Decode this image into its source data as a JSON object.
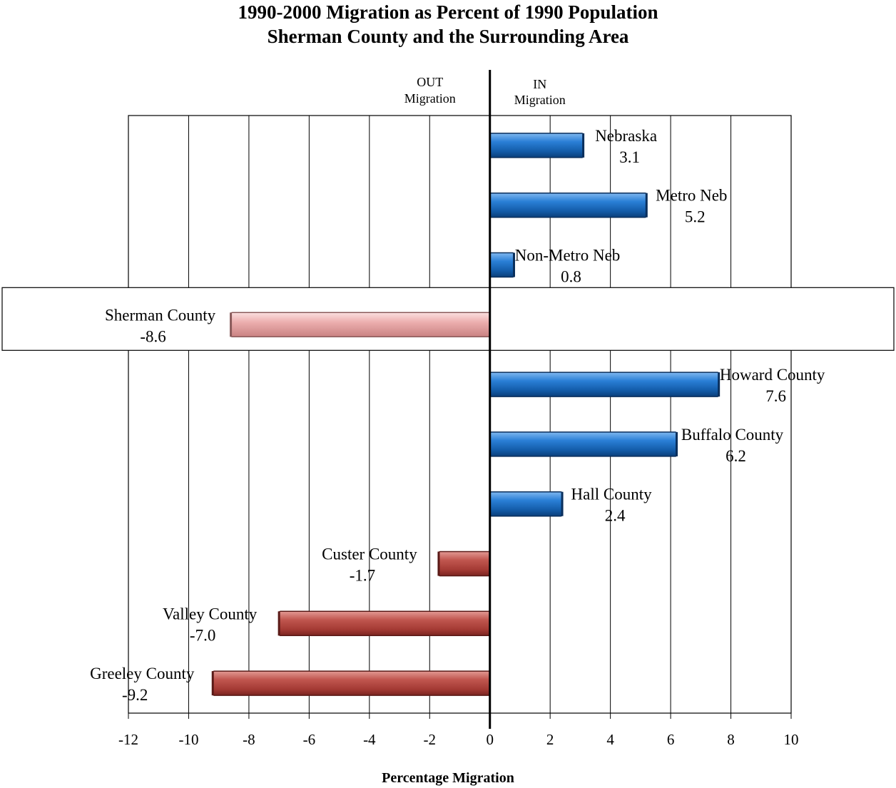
{
  "title_line1": "1990-2000 Migration  as Percent of 1990 Population",
  "title_line2": "Sherman County and the Surrounding Area",
  "out_label": [
    "OUT",
    "Migration"
  ],
  "in_label": [
    "IN",
    "Migration"
  ],
  "chart_data": {
    "type": "bar",
    "orientation": "horizontal",
    "title": "1990-2000 Migration  as Percent of 1990 Population / Sherman County and the Surrounding Area",
    "xlabel": "Percentage Migration",
    "ylabel": "",
    "xlim": [
      -12,
      10
    ],
    "xticks": [
      -12,
      -10,
      -8,
      -6,
      -4,
      -2,
      0,
      2,
      4,
      6,
      8,
      10
    ],
    "grid": true,
    "categories": [
      "Nebraska",
      "Metro Neb",
      "Non-Metro Neb",
      "Sherman County",
      "Howard County",
      "Buffalo County",
      "Hall County",
      "Custer County",
      "Valley County",
      "Greeley County"
    ],
    "values": [
      3.1,
      5.2,
      0.8,
      -8.6,
      7.6,
      6.2,
      2.4,
      -1.7,
      -7.0,
      -9.2
    ],
    "value_labels": [
      "3.1",
      "5.2",
      "0.8",
      "-8.6",
      "7.6",
      "6.2",
      "2.4",
      "-1.7",
      "-7.0",
      "-9.2"
    ],
    "highlighted": "Sherman County",
    "colors": {
      "positive": "#1f6fc2",
      "negative": "#b5463f",
      "highlight": "#e8a6a6"
    }
  },
  "x_axis_title": "Percentage Migration"
}
